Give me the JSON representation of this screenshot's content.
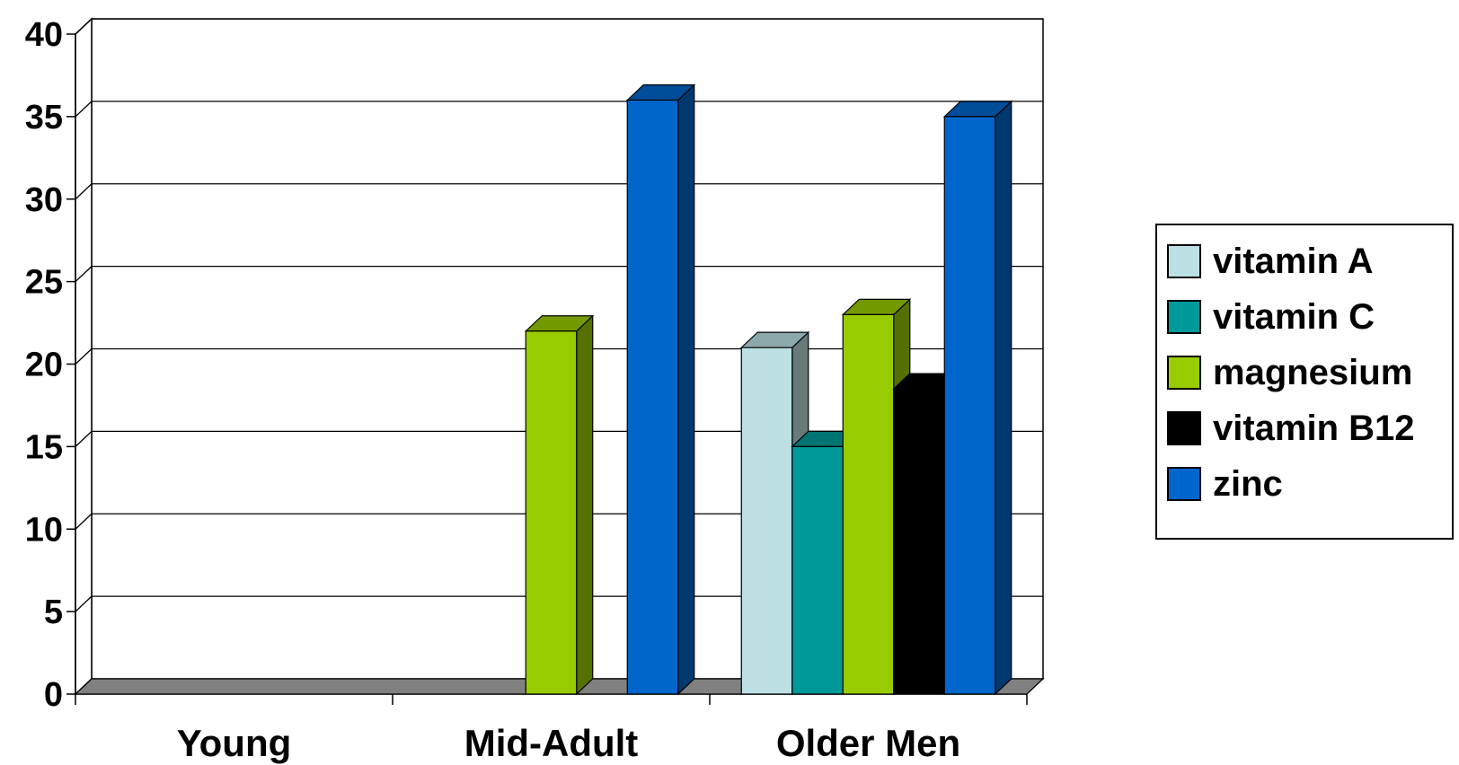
{
  "chart_data": {
    "type": "bar",
    "style": "3d-clustered-column",
    "categories": [
      "Young",
      "Mid-Adult",
      "Older Men"
    ],
    "ylim": [
      0,
      40
    ],
    "yticks": [
      0,
      5,
      10,
      15,
      20,
      25,
      30,
      35,
      40
    ],
    "grid": true,
    "legend_position": "right",
    "series": [
      {
        "name": "vitamin A",
        "color": "#BCE0E4",
        "values": [
          0,
          0,
          21
        ]
      },
      {
        "name": "vitamin C",
        "color": "#009999",
        "values": [
          0,
          0,
          15
        ]
      },
      {
        "name": "magnesium",
        "color": "#99CC00",
        "values": [
          0,
          22,
          23
        ]
      },
      {
        "name": "vitamin B12",
        "color": "#000000",
        "values": [
          0,
          0,
          18.5
        ]
      },
      {
        "name": "zinc",
        "color": "#0066CC",
        "values": [
          0,
          36,
          35
        ]
      }
    ]
  }
}
